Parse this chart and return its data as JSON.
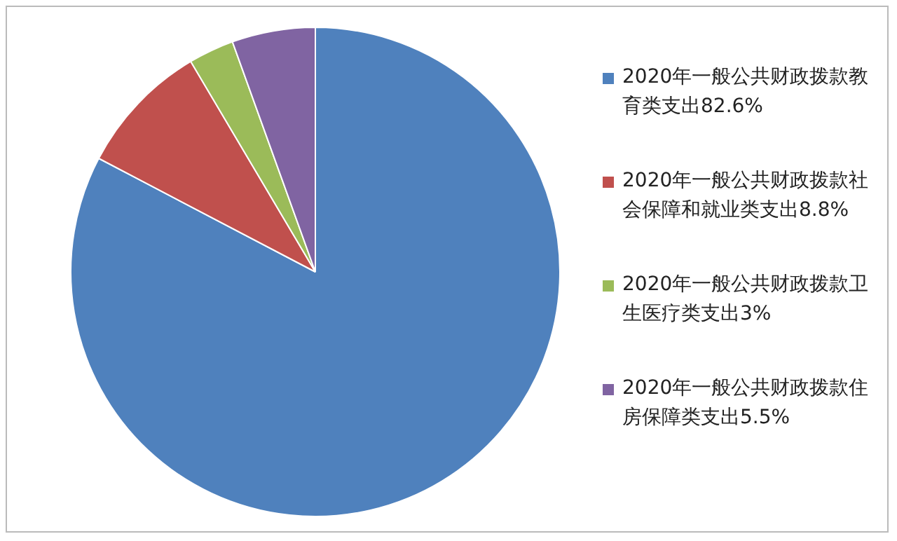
{
  "chart_data": {
    "type": "pie",
    "categories": [
      "2020年一般公共财政拨款教育类支出82.6%",
      "2020年一般公共财政拨款社会保障和就业类支出8.8%",
      "2020年一般公共财政拨款卫生医疗类支出3%",
      "2020年一般公共财政拨款住房保障类支出5.5%"
    ],
    "values": [
      82.6,
      8.8,
      3,
      5.5
    ],
    "colors": [
      "#4f81bd",
      "#c0504d",
      "#9bbb59",
      "#8064a2"
    ],
    "legend": "right"
  }
}
